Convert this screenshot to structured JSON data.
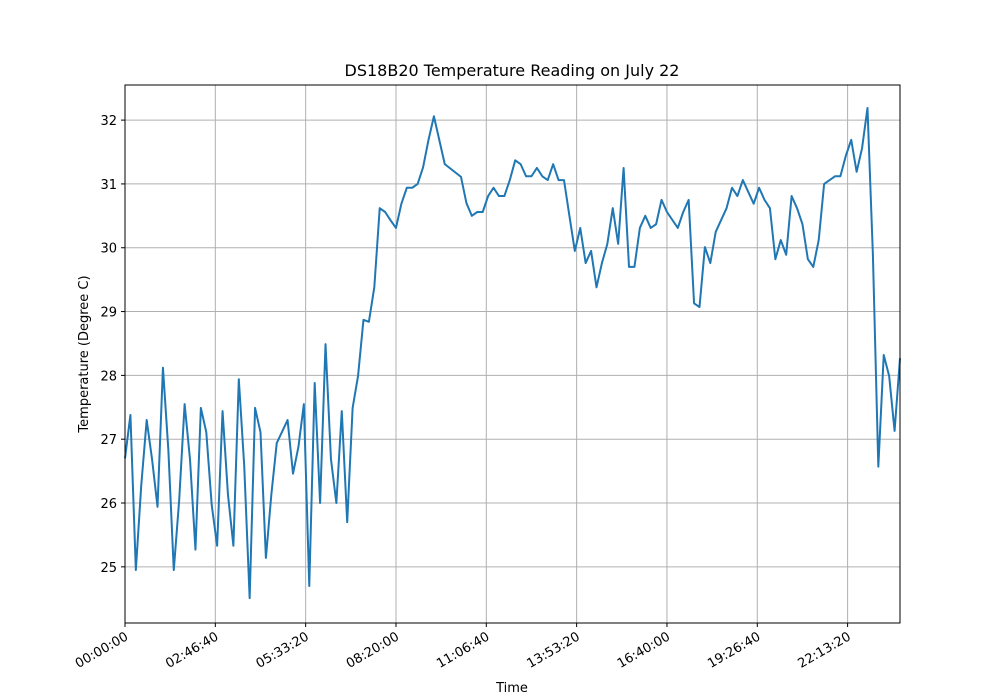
{
  "chart_data": {
    "type": "line",
    "title": "DS18B20 Temperature Reading on July 22",
    "x_label": "Time",
    "y_label": "Temperature (Degree C)",
    "color": "#1f77b4",
    "grid": true,
    "x": [
      0,
      600,
      1200,
      1800,
      2400,
      3000,
      3600,
      4200,
      4800,
      5400,
      6000,
      6600,
      7200,
      7800,
      8400,
      9000,
      9600,
      10200,
      10800,
      11400,
      12000,
      12600,
      13200,
      13800,
      14400,
      15000,
      15600,
      16200,
      16800,
      18000,
      18600,
      19200,
      19800,
      20400,
      21000,
      21600,
      22200,
      22800,
      23400,
      24000,
      24600,
      25200,
      25800,
      26400,
      27000,
      27600,
      28200,
      28800,
      29400,
      30000,
      30600,
      31200,
      31800,
      32400,
      33000,
      33600,
      34200,
      35400,
      37200,
      37800,
      38400,
      39000,
      39600,
      40200,
      40800,
      41400,
      42000,
      42600,
      43200,
      43800,
      44400,
      45000,
      45600,
      46200,
      46800,
      47400,
      48000,
      48600,
      49200,
      49800,
      50400,
      51000,
      51600,
      52200,
      52800,
      53400,
      54000,
      54600,
      55200,
      55800,
      56400,
      57000,
      57600,
      58200,
      58800,
      59400,
      60000,
      61200,
      61800,
      62400,
      63000,
      63600,
      64200,
      64800,
      65400,
      66600,
      67200,
      67800,
      68400,
      69600,
      70200,
      70800,
      71400,
      72000,
      72600,
      73200,
      73800,
      74400,
      75000,
      75600,
      76200,
      76800,
      77400,
      78600,
      79200,
      79800,
      80400,
      81000,
      81600,
      82200,
      82800,
      83400,
      84000,
      84600,
      85200,
      85800
    ],
    "values": [
      26.7,
      27.38,
      24.95,
      26.28,
      27.3,
      26.68,
      25.94,
      28.12,
      26.83,
      24.95,
      26.05,
      27.55,
      26.68,
      25.27,
      27.49,
      27.11,
      25.97,
      25.33,
      27.44,
      26.13,
      25.33,
      27.94,
      26.58,
      24.51,
      27.49,
      27.11,
      25.14,
      26.13,
      26.94,
      27.3,
      26.46,
      26.88,
      27.55,
      24.7,
      27.88,
      26.0,
      28.49,
      26.69,
      26.0,
      27.44,
      25.7,
      27.49,
      27.99,
      28.87,
      28.84,
      29.38,
      30.62,
      30.56,
      30.43,
      30.31,
      30.69,
      30.94,
      30.94,
      31.0,
      31.26,
      31.69,
      32.06,
      31.31,
      31.11,
      30.7,
      30.5,
      30.56,
      30.56,
      30.81,
      30.94,
      30.81,
      30.81,
      31.06,
      31.37,
      31.31,
      31.12,
      31.12,
      31.25,
      31.12,
      31.06,
      31.31,
      31.06,
      31.06,
      30.5,
      29.95,
      30.31,
      29.76,
      29.95,
      29.38,
      29.76,
      30.06,
      30.62,
      30.06,
      31.25,
      29.7,
      29.7,
      30.31,
      30.5,
      30.31,
      30.37,
      30.75,
      30.56,
      30.31,
      30.56,
      30.75,
      29.13,
      29.07,
      30.01,
      29.76,
      30.25,
      30.62,
      30.94,
      30.81,
      31.06,
      30.69,
      30.94,
      30.75,
      30.62,
      29.82,
      30.12,
      29.89,
      30.81,
      30.62,
      30.37,
      29.82,
      29.7,
      30.12,
      31.0,
      31.12,
      31.12,
      31.44,
      31.69,
      31.19,
      31.56,
      32.19,
      29.89,
      26.57,
      28.32,
      27.99,
      27.13,
      28.27
    ],
    "xlim": [
      0,
      85800
    ],
    "xticks": [
      {
        "value": 0,
        "label": "00:00:00"
      },
      {
        "value": 10000,
        "label": "02:46:40"
      },
      {
        "value": 20000,
        "label": "05:33:20"
      },
      {
        "value": 30000,
        "label": "08:20:00"
      },
      {
        "value": 40000,
        "label": "11:06:40"
      },
      {
        "value": 50000,
        "label": "13:53:20"
      },
      {
        "value": 60000,
        "label": "16:40:00"
      },
      {
        "value": 70000,
        "label": "19:26:40"
      },
      {
        "value": 80000,
        "label": "22:13:20"
      }
    ],
    "ylim": [
      24.12,
      32.55
    ],
    "yticks": [
      25,
      26,
      27,
      28,
      29,
      30,
      31,
      32
    ]
  }
}
